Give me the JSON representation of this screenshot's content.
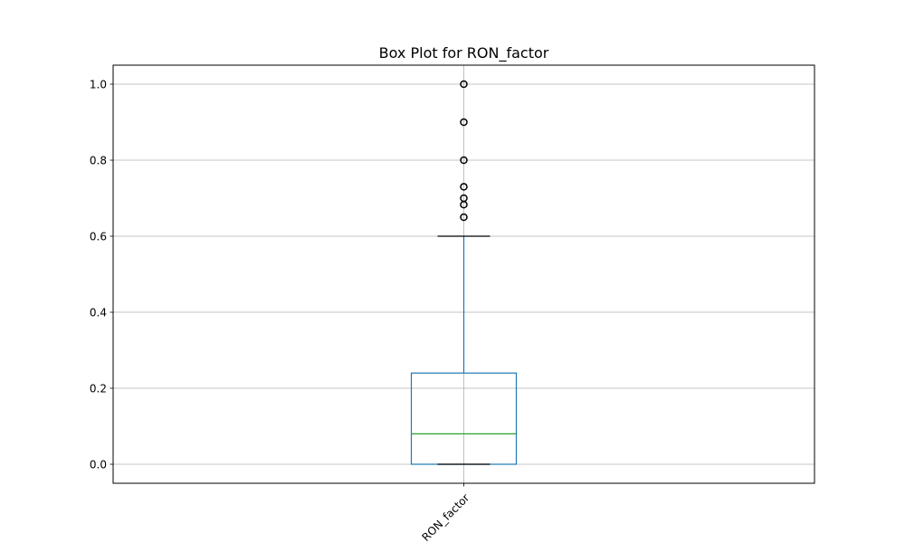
{
  "chart_data": {
    "type": "box",
    "title": "Box Plot for RON_factor",
    "xlabel": "",
    "ylabel": "",
    "categories": [
      "RON_factor"
    ],
    "ylim": [
      -0.05,
      1.05
    ],
    "yticks": [
      0.0,
      0.2,
      0.4,
      0.6,
      0.8,
      1.0
    ],
    "ytick_labels": [
      "0.0",
      "0.2",
      "0.4",
      "0.6",
      "0.8",
      "1.0"
    ],
    "grid": true,
    "xtick_rotation": 45,
    "boxes": [
      {
        "name": "RON_factor",
        "whisker_low": 0.0,
        "q1": 0.0,
        "median": 0.08,
        "q3": 0.24,
        "whisker_high": 0.6,
        "outliers": [
          0.65,
          0.683,
          0.7,
          0.73,
          0.8,
          0.9,
          1.0
        ]
      }
    ],
    "colors": {
      "box": "#1f77b4",
      "whisker": "#1f77b4",
      "cap": "#000000",
      "median": "#2ca02c",
      "outlier": "#000000",
      "grid": "#b0b0b0",
      "axes": "#000000"
    }
  }
}
